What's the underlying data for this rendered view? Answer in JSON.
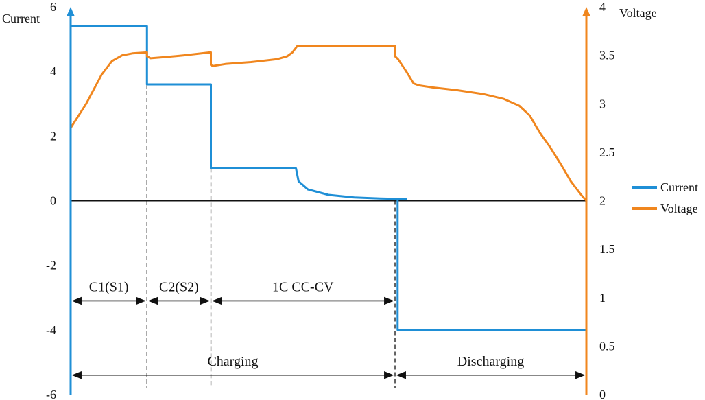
{
  "chart_data": {
    "type": "line",
    "title": "",
    "left_axis": {
      "label": "Current",
      "ylim": [
        -6,
        6
      ],
      "ticks": [
        "6",
        "4",
        "2",
        "0",
        "-2",
        "-4",
        "-6"
      ],
      "tick_values": [
        6,
        4,
        2,
        0,
        -2,
        -4,
        -6
      ],
      "color": "#1f8fd6"
    },
    "right_axis": {
      "label": "Voltage",
      "ylim": [
        0,
        4
      ],
      "ticks": [
        "4",
        "3.5",
        "3",
        "2.5",
        "2",
        "1.5",
        "1",
        "0.5",
        "0"
      ],
      "tick_values": [
        4,
        3.5,
        3,
        2.5,
        2,
        1.5,
        1,
        0.5,
        0
      ],
      "color": "#f0861e"
    },
    "xlim": [
      0,
      100
    ],
    "grid": false,
    "legend_position": "right",
    "series": [
      {
        "name": "Current",
        "axis": "left",
        "color": "#1f8fd6",
        "points": [
          [
            0,
            5.4
          ],
          [
            14.8,
            5.4
          ],
          [
            14.8,
            3.6
          ],
          [
            27.2,
            3.6
          ],
          [
            27.2,
            1.0
          ],
          [
            43.7,
            1.0
          ],
          [
            44.2,
            0.6
          ],
          [
            46,
            0.35
          ],
          [
            50,
            0.18
          ],
          [
            55,
            0.1
          ],
          [
            60,
            0.07
          ],
          [
            65,
            0.05
          ],
          [
            62.9,
            0.05
          ],
          [
            63.4,
            0.05
          ],
          [
            63.4,
            -4.0
          ],
          [
            100,
            -4.0
          ]
        ]
      },
      {
        "name": "Voltage",
        "axis": "right",
        "color": "#f0861e",
        "points": [
          [
            0,
            2.75
          ],
          [
            3,
            3.0
          ],
          [
            6,
            3.3
          ],
          [
            8,
            3.44
          ],
          [
            10,
            3.5
          ],
          [
            12,
            3.52
          ],
          [
            14.8,
            3.53
          ],
          [
            14.8,
            3.49
          ],
          [
            15.5,
            3.47
          ],
          [
            18,
            3.48
          ],
          [
            22,
            3.5
          ],
          [
            27,
            3.53
          ],
          [
            27.2,
            3.53
          ],
          [
            27.2,
            3.4
          ],
          [
            27.6,
            3.39
          ],
          [
            30,
            3.41
          ],
          [
            35,
            3.43
          ],
          [
            40,
            3.46
          ],
          [
            42,
            3.49
          ],
          [
            43,
            3.53
          ],
          [
            44,
            3.6
          ],
          [
            62.9,
            3.6
          ],
          [
            62.9,
            3.49
          ],
          [
            63.5,
            3.46
          ],
          [
            65,
            3.34
          ],
          [
            66.5,
            3.21
          ],
          [
            67.5,
            3.19
          ],
          [
            70,
            3.17
          ],
          [
            75,
            3.14
          ],
          [
            80,
            3.1
          ],
          [
            84,
            3.05
          ],
          [
            87,
            2.98
          ],
          [
            89,
            2.88
          ],
          [
            91,
            2.7
          ],
          [
            93,
            2.55
          ],
          [
            95,
            2.38
          ],
          [
            97,
            2.2
          ],
          [
            99,
            2.06
          ],
          [
            100,
            2.0
          ]
        ]
      }
    ],
    "annotations": {
      "markers": [
        14.8,
        27.2,
        62.9
      ],
      "spans": [
        {
          "label": "C1(S1)",
          "from": 0,
          "to": 14.8,
          "y": -3.1
        },
        {
          "label": "C2(S2)",
          "from": 14.8,
          "to": 27.2,
          "y": -3.1
        },
        {
          "label": "1C CC-CV",
          "from": 27.2,
          "to": 62.9,
          "y": -3.1
        },
        {
          "label": "Charging",
          "from": 0,
          "to": 62.9,
          "y": -5.4
        },
        {
          "label": "Discharging",
          "from": 62.9,
          "to": 100,
          "y": -5.4
        }
      ]
    }
  }
}
